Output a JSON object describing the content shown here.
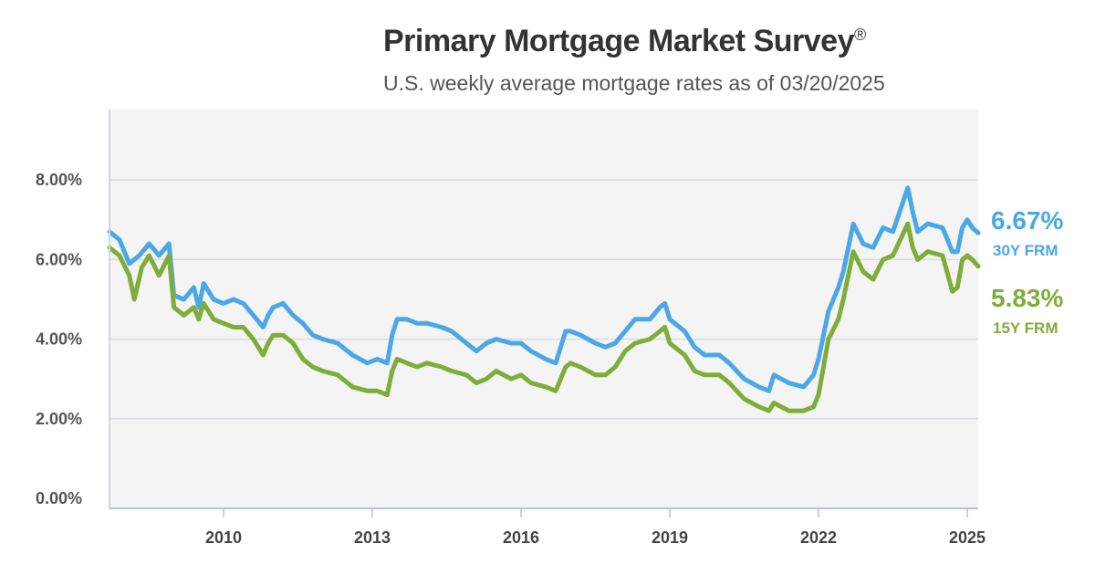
{
  "chart_data": {
    "type": "line",
    "title": "Primary Mortgage Market Survey",
    "title_mark": "®",
    "subtitle": "U.S. weekly average mortgage rates as of 03/20/2025",
    "x_range": [
      2007.7,
      2025.22
    ],
    "xticks": [
      2010,
      2013,
      2016,
      2019,
      2022,
      2025
    ],
    "ylim": [
      0,
      10
    ],
    "yticks": [
      0,
      2,
      4,
      6,
      8
    ],
    "ytick_labels": [
      "0.00%",
      "2.00%",
      "4.00%",
      "6.00%",
      "8.00%"
    ],
    "grid": true,
    "series": [
      {
        "name": "30Y FRM",
        "end_value": "6.67%",
        "color": "#4aa8e8",
        "points": [
          [
            2007.7,
            6.7
          ],
          [
            2007.9,
            6.5
          ],
          [
            2008.1,
            5.9
          ],
          [
            2008.3,
            6.1
          ],
          [
            2008.5,
            6.4
          ],
          [
            2008.7,
            6.1
          ],
          [
            2008.9,
            6.4
          ],
          [
            2009.0,
            5.1
          ],
          [
            2009.2,
            5.0
          ],
          [
            2009.4,
            5.3
          ],
          [
            2009.5,
            4.8
          ],
          [
            2009.6,
            5.4
          ],
          [
            2009.8,
            5.0
          ],
          [
            2010.0,
            4.9
          ],
          [
            2010.2,
            5.0
          ],
          [
            2010.4,
            4.9
          ],
          [
            2010.6,
            4.6
          ],
          [
            2010.8,
            4.3
          ],
          [
            2010.9,
            4.6
          ],
          [
            2011.0,
            4.8
          ],
          [
            2011.2,
            4.9
          ],
          [
            2011.4,
            4.6
          ],
          [
            2011.6,
            4.4
          ],
          [
            2011.8,
            4.1
          ],
          [
            2012.0,
            4.0
          ],
          [
            2012.3,
            3.9
          ],
          [
            2012.6,
            3.6
          ],
          [
            2012.9,
            3.4
          ],
          [
            2013.1,
            3.5
          ],
          [
            2013.3,
            3.4
          ],
          [
            2013.4,
            4.1
          ],
          [
            2013.5,
            4.5
          ],
          [
            2013.7,
            4.5
          ],
          [
            2013.9,
            4.4
          ],
          [
            2014.1,
            4.4
          ],
          [
            2014.4,
            4.3
          ],
          [
            2014.6,
            4.2
          ],
          [
            2014.9,
            3.9
          ],
          [
            2015.1,
            3.7
          ],
          [
            2015.3,
            3.9
          ],
          [
            2015.5,
            4.0
          ],
          [
            2015.8,
            3.9
          ],
          [
            2016.0,
            3.9
          ],
          [
            2016.2,
            3.7
          ],
          [
            2016.5,
            3.5
          ],
          [
            2016.7,
            3.4
          ],
          [
            2016.9,
            4.2
          ],
          [
            2017.0,
            4.2
          ],
          [
            2017.2,
            4.1
          ],
          [
            2017.5,
            3.9
          ],
          [
            2017.7,
            3.8
          ],
          [
            2017.9,
            3.9
          ],
          [
            2018.1,
            4.2
          ],
          [
            2018.3,
            4.5
          ],
          [
            2018.6,
            4.5
          ],
          [
            2018.8,
            4.8
          ],
          [
            2018.9,
            4.9
          ],
          [
            2019.0,
            4.5
          ],
          [
            2019.3,
            4.2
          ],
          [
            2019.5,
            3.8
          ],
          [
            2019.7,
            3.6
          ],
          [
            2020.0,
            3.6
          ],
          [
            2020.2,
            3.4
          ],
          [
            2020.5,
            3.0
          ],
          [
            2020.8,
            2.8
          ],
          [
            2021.0,
            2.7
          ],
          [
            2021.1,
            3.1
          ],
          [
            2021.4,
            2.9
          ],
          [
            2021.7,
            2.8
          ],
          [
            2021.9,
            3.1
          ],
          [
            2022.0,
            3.5
          ],
          [
            2022.2,
            4.7
          ],
          [
            2022.4,
            5.3
          ],
          [
            2022.5,
            5.7
          ],
          [
            2022.7,
            6.9
          ],
          [
            2022.9,
            6.4
          ],
          [
            2023.1,
            6.3
          ],
          [
            2023.3,
            6.8
          ],
          [
            2023.5,
            6.7
          ],
          [
            2023.8,
            7.8
          ],
          [
            2023.9,
            7.2
          ],
          [
            2024.0,
            6.7
          ],
          [
            2024.2,
            6.9
          ],
          [
            2024.5,
            6.8
          ],
          [
            2024.7,
            6.2
          ],
          [
            2024.8,
            6.2
          ],
          [
            2024.9,
            6.8
          ],
          [
            2025.0,
            7.0
          ],
          [
            2025.1,
            6.8
          ],
          [
            2025.22,
            6.67
          ]
        ]
      },
      {
        "name": "15Y FRM",
        "end_value": "5.83%",
        "color": "#7fad3a",
        "points": [
          [
            2007.7,
            6.3
          ],
          [
            2007.9,
            6.1
          ],
          [
            2008.1,
            5.6
          ],
          [
            2008.2,
            5.0
          ],
          [
            2008.35,
            5.8
          ],
          [
            2008.5,
            6.1
          ],
          [
            2008.7,
            5.6
          ],
          [
            2008.9,
            6.1
          ],
          [
            2009.0,
            4.8
          ],
          [
            2009.2,
            4.6
          ],
          [
            2009.4,
            4.8
          ],
          [
            2009.5,
            4.5
          ],
          [
            2009.6,
            4.9
          ],
          [
            2009.8,
            4.5
          ],
          [
            2010.0,
            4.4
          ],
          [
            2010.2,
            4.3
          ],
          [
            2010.4,
            4.3
          ],
          [
            2010.6,
            4.0
          ],
          [
            2010.8,
            3.6
          ],
          [
            2010.9,
            3.9
          ],
          [
            2011.0,
            4.1
          ],
          [
            2011.2,
            4.1
          ],
          [
            2011.4,
            3.9
          ],
          [
            2011.6,
            3.5
          ],
          [
            2011.8,
            3.3
          ],
          [
            2012.0,
            3.2
          ],
          [
            2012.3,
            3.1
          ],
          [
            2012.6,
            2.8
          ],
          [
            2012.9,
            2.7
          ],
          [
            2013.1,
            2.7
          ],
          [
            2013.3,
            2.6
          ],
          [
            2013.4,
            3.2
          ],
          [
            2013.5,
            3.5
          ],
          [
            2013.7,
            3.4
          ],
          [
            2013.9,
            3.3
          ],
          [
            2014.1,
            3.4
          ],
          [
            2014.4,
            3.3
          ],
          [
            2014.6,
            3.2
          ],
          [
            2014.9,
            3.1
          ],
          [
            2015.1,
            2.9
          ],
          [
            2015.3,
            3.0
          ],
          [
            2015.5,
            3.2
          ],
          [
            2015.8,
            3.0
          ],
          [
            2016.0,
            3.1
          ],
          [
            2016.2,
            2.9
          ],
          [
            2016.5,
            2.8
          ],
          [
            2016.7,
            2.7
          ],
          [
            2016.9,
            3.3
          ],
          [
            2017.0,
            3.4
          ],
          [
            2017.2,
            3.3
          ],
          [
            2017.5,
            3.1
          ],
          [
            2017.7,
            3.1
          ],
          [
            2017.9,
            3.3
          ],
          [
            2018.1,
            3.7
          ],
          [
            2018.3,
            3.9
          ],
          [
            2018.6,
            4.0
          ],
          [
            2018.8,
            4.2
          ],
          [
            2018.9,
            4.3
          ],
          [
            2019.0,
            3.9
          ],
          [
            2019.3,
            3.6
          ],
          [
            2019.5,
            3.2
          ],
          [
            2019.7,
            3.1
          ],
          [
            2020.0,
            3.1
          ],
          [
            2020.2,
            2.9
          ],
          [
            2020.5,
            2.5
          ],
          [
            2020.8,
            2.3
          ],
          [
            2021.0,
            2.2
          ],
          [
            2021.1,
            2.4
          ],
          [
            2021.4,
            2.2
          ],
          [
            2021.7,
            2.2
          ],
          [
            2021.9,
            2.3
          ],
          [
            2022.0,
            2.6
          ],
          [
            2022.2,
            4.0
          ],
          [
            2022.4,
            4.5
          ],
          [
            2022.5,
            5.0
          ],
          [
            2022.7,
            6.2
          ],
          [
            2022.9,
            5.7
          ],
          [
            2023.1,
            5.5
          ],
          [
            2023.3,
            6.0
          ],
          [
            2023.5,
            6.1
          ],
          [
            2023.8,
            6.9
          ],
          [
            2023.9,
            6.3
          ],
          [
            2024.0,
            6.0
          ],
          [
            2024.2,
            6.2
          ],
          [
            2024.5,
            6.1
          ],
          [
            2024.7,
            5.2
          ],
          [
            2024.8,
            5.3
          ],
          [
            2024.9,
            6.0
          ],
          [
            2025.0,
            6.1
          ],
          [
            2025.1,
            6.0
          ],
          [
            2025.22,
            5.83
          ]
        ]
      }
    ]
  }
}
